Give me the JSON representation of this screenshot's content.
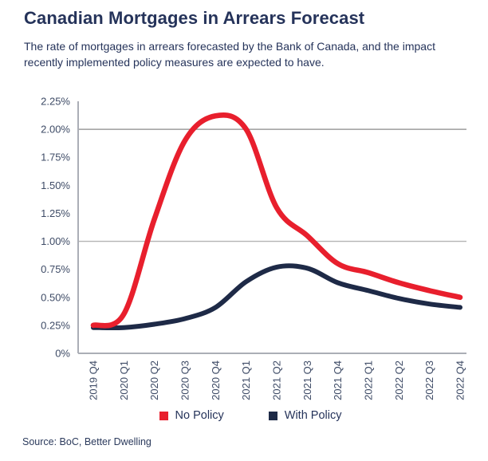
{
  "header": {
    "title": "Canadian Mortgages in Arrears Forecast",
    "subtitle": "The rate of mortgages in arrears forecasted by the Bank of Canada, and the impact recently implemented policy measures are expected to have."
  },
  "source": "Source: BoC, Better Dwelling",
  "colors": {
    "no_policy": "#e81f2d",
    "with_policy": "#1e2a47",
    "heading_text": "#25335a",
    "axis_text": "#3e4b66",
    "axis_line": "#abaeb6"
  },
  "legend": {
    "items": [
      {
        "label": "No Policy",
        "color": "#e81f2d"
      },
      {
        "label": "With Policy",
        "color": "#1e2a47"
      }
    ]
  },
  "chart_data": {
    "type": "line",
    "title": "Canadian Mortgages in Arrears Forecast",
    "xlabel": "",
    "ylabel": "",
    "ylim": [
      0,
      2.25
    ],
    "grid": "horizontal-partial",
    "legend_position": "bottom",
    "categories": [
      "2019 Q4",
      "2020 Q1",
      "2020 Q2",
      "2020 Q3",
      "2020 Q4",
      "2021 Q1",
      "2021 Q2",
      "2021 Q3",
      "2021 Q4",
      "2022 Q1",
      "2022 Q2",
      "2022 Q3",
      "2022 Q4"
    ],
    "series": [
      {
        "name": "No Policy",
        "color": "#e81f2d",
        "values": [
          0.25,
          0.35,
          1.2,
          1.9,
          2.12,
          2.0,
          1.3,
          1.05,
          0.8,
          0.72,
          0.63,
          0.56,
          0.5
        ]
      },
      {
        "name": "With Policy",
        "color": "#1e2a47",
        "values": [
          0.23,
          0.23,
          0.26,
          0.31,
          0.41,
          0.64,
          0.77,
          0.76,
          0.63,
          0.56,
          0.49,
          0.44,
          0.41
        ]
      }
    ],
    "y_ticks": [
      {
        "label": "2.25%",
        "value": 2.25
      },
      {
        "label": "2.00%",
        "value": 2.0
      },
      {
        "label": "1.75%",
        "value": 1.75
      },
      {
        "label": "1.50%",
        "value": 1.5
      },
      {
        "label": "1.25%",
        "value": 1.25
      },
      {
        "label": "1.00%",
        "value": 1.0
      },
      {
        "label": "0.75%",
        "value": 0.75
      },
      {
        "label": "0.50%",
        "value": 0.5
      },
      {
        "label": "0.25%",
        "value": 0.25
      },
      {
        "label": "0%",
        "value": 0
      }
    ],
    "gridlines": [
      {
        "value": 2.0,
        "color": "#8a8a8a"
      },
      {
        "value": 1.0,
        "color": "#b4b4b4"
      }
    ]
  }
}
